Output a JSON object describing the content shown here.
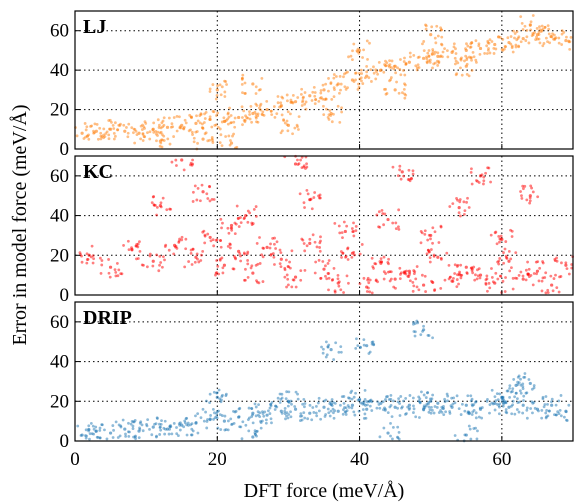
{
  "chart_data": {
    "type": "scatter",
    "xlabel": "DFT force (meV/Å)",
    "ylabel": "Error in model force (meV/Å)",
    "xlim": [
      0,
      70
    ],
    "xticks": [
      0,
      20,
      40,
      60
    ],
    "grid": true,
    "panels": [
      {
        "name": "LJ",
        "color": "#ff7f0e",
        "ylim": [
          0,
          70
        ],
        "yticks": [
          0,
          20,
          40,
          60
        ],
        "points": [
          [
            1,
            8
          ],
          [
            3,
            9
          ],
          [
            5,
            10
          ],
          [
            7,
            9
          ],
          [
            9,
            8
          ],
          [
            11,
            10
          ],
          [
            13,
            11
          ],
          [
            15,
            12
          ],
          [
            17,
            13
          ],
          [
            19,
            15
          ],
          [
            21,
            14
          ],
          [
            23,
            16
          ],
          [
            25,
            18
          ],
          [
            27,
            20
          ],
          [
            29,
            22
          ],
          [
            31,
            24
          ],
          [
            33,
            27
          ],
          [
            35,
            30
          ],
          [
            37,
            33
          ],
          [
            39,
            35
          ],
          [
            41,
            37
          ],
          [
            43,
            40
          ],
          [
            45,
            42
          ],
          [
            47,
            44
          ],
          [
            49,
            46
          ],
          [
            51,
            47
          ],
          [
            53,
            49
          ],
          [
            55,
            50
          ],
          [
            57,
            51
          ],
          [
            59,
            53
          ],
          [
            61,
            54
          ],
          [
            63,
            56
          ],
          [
            65,
            58
          ],
          [
            67,
            57
          ],
          [
            69,
            55
          ],
          [
            12,
            4
          ],
          [
            18,
            5
          ],
          [
            22,
            3
          ],
          [
            30,
            12
          ],
          [
            36,
            18
          ],
          [
            45,
            30
          ],
          [
            55,
            42
          ],
          [
            64,
            63
          ],
          [
            20,
            30
          ],
          [
            25,
            33
          ],
          [
            40,
            50
          ],
          [
            50,
            58
          ]
        ]
      },
      {
        "name": "KC",
        "color": "#ff0000",
        "ylim": [
          0,
          70
        ],
        "yticks": [
          0,
          20,
          40,
          60
        ],
        "points": [
          [
            2,
            20
          ],
          [
            5,
            14
          ],
          [
            8,
            23
          ],
          [
            11,
            17
          ],
          [
            14,
            25
          ],
          [
            17,
            19
          ],
          [
            19,
            29
          ],
          [
            21,
            15
          ],
          [
            23,
            22
          ],
          [
            25,
            11
          ],
          [
            27,
            24
          ],
          [
            29,
            18
          ],
          [
            31,
            9
          ],
          [
            33,
            26
          ],
          [
            35,
            13
          ],
          [
            37,
            6
          ],
          [
            39,
            21
          ],
          [
            41,
            4
          ],
          [
            43,
            16
          ],
          [
            45,
            8
          ],
          [
            47,
            12
          ],
          [
            49,
            5
          ],
          [
            51,
            19
          ],
          [
            53,
            7
          ],
          [
            55,
            14
          ],
          [
            57,
            10
          ],
          [
            59,
            6
          ],
          [
            61,
            17
          ],
          [
            63,
            8
          ],
          [
            65,
            12
          ],
          [
            67,
            5
          ],
          [
            69,
            15
          ],
          [
            12,
            45
          ],
          [
            18,
            52
          ],
          [
            24,
            40
          ],
          [
            33,
            48
          ],
          [
            44,
            38
          ],
          [
            54,
            44
          ],
          [
            64,
            50
          ],
          [
            15,
            68
          ],
          [
            31,
            66
          ],
          [
            46,
            62
          ],
          [
            57,
            60
          ],
          [
            22,
            35
          ],
          [
            38,
            32
          ],
          [
            50,
            30
          ],
          [
            60,
            28
          ]
        ]
      },
      {
        "name": "DRIP",
        "color": "#1f77b4",
        "ylim": [
          0,
          70
        ],
        "yticks": [
          0,
          20,
          40,
          60
        ],
        "points": [
          [
            1,
            3
          ],
          [
            3,
            5
          ],
          [
            5,
            4
          ],
          [
            7,
            6
          ],
          [
            9,
            5
          ],
          [
            11,
            7
          ],
          [
            13,
            6
          ],
          [
            15,
            8
          ],
          [
            17,
            9
          ],
          [
            19,
            11
          ],
          [
            21,
            10
          ],
          [
            23,
            12
          ],
          [
            25,
            14
          ],
          [
            27,
            13
          ],
          [
            29,
            15
          ],
          [
            31,
            16
          ],
          [
            33,
            14
          ],
          [
            35,
            17
          ],
          [
            37,
            15
          ],
          [
            39,
            18
          ],
          [
            41,
            16
          ],
          [
            43,
            19
          ],
          [
            45,
            17
          ],
          [
            47,
            18
          ],
          [
            49,
            16
          ],
          [
            51,
            19
          ],
          [
            53,
            17
          ],
          [
            55,
            18
          ],
          [
            57,
            16
          ],
          [
            59,
            19
          ],
          [
            61,
            17
          ],
          [
            63,
            18
          ],
          [
            65,
            16
          ],
          [
            67,
            18
          ],
          [
            69,
            15
          ],
          [
            20,
            22
          ],
          [
            30,
            20
          ],
          [
            40,
            21
          ],
          [
            50,
            20
          ],
          [
            60,
            22
          ],
          [
            36,
            46
          ],
          [
            41,
            48
          ],
          [
            49,
            56
          ],
          [
            62,
            28
          ],
          [
            64,
            29
          ],
          [
            44,
            4
          ],
          [
            55,
            3
          ],
          [
            25,
            2
          ]
        ]
      }
    ]
  }
}
